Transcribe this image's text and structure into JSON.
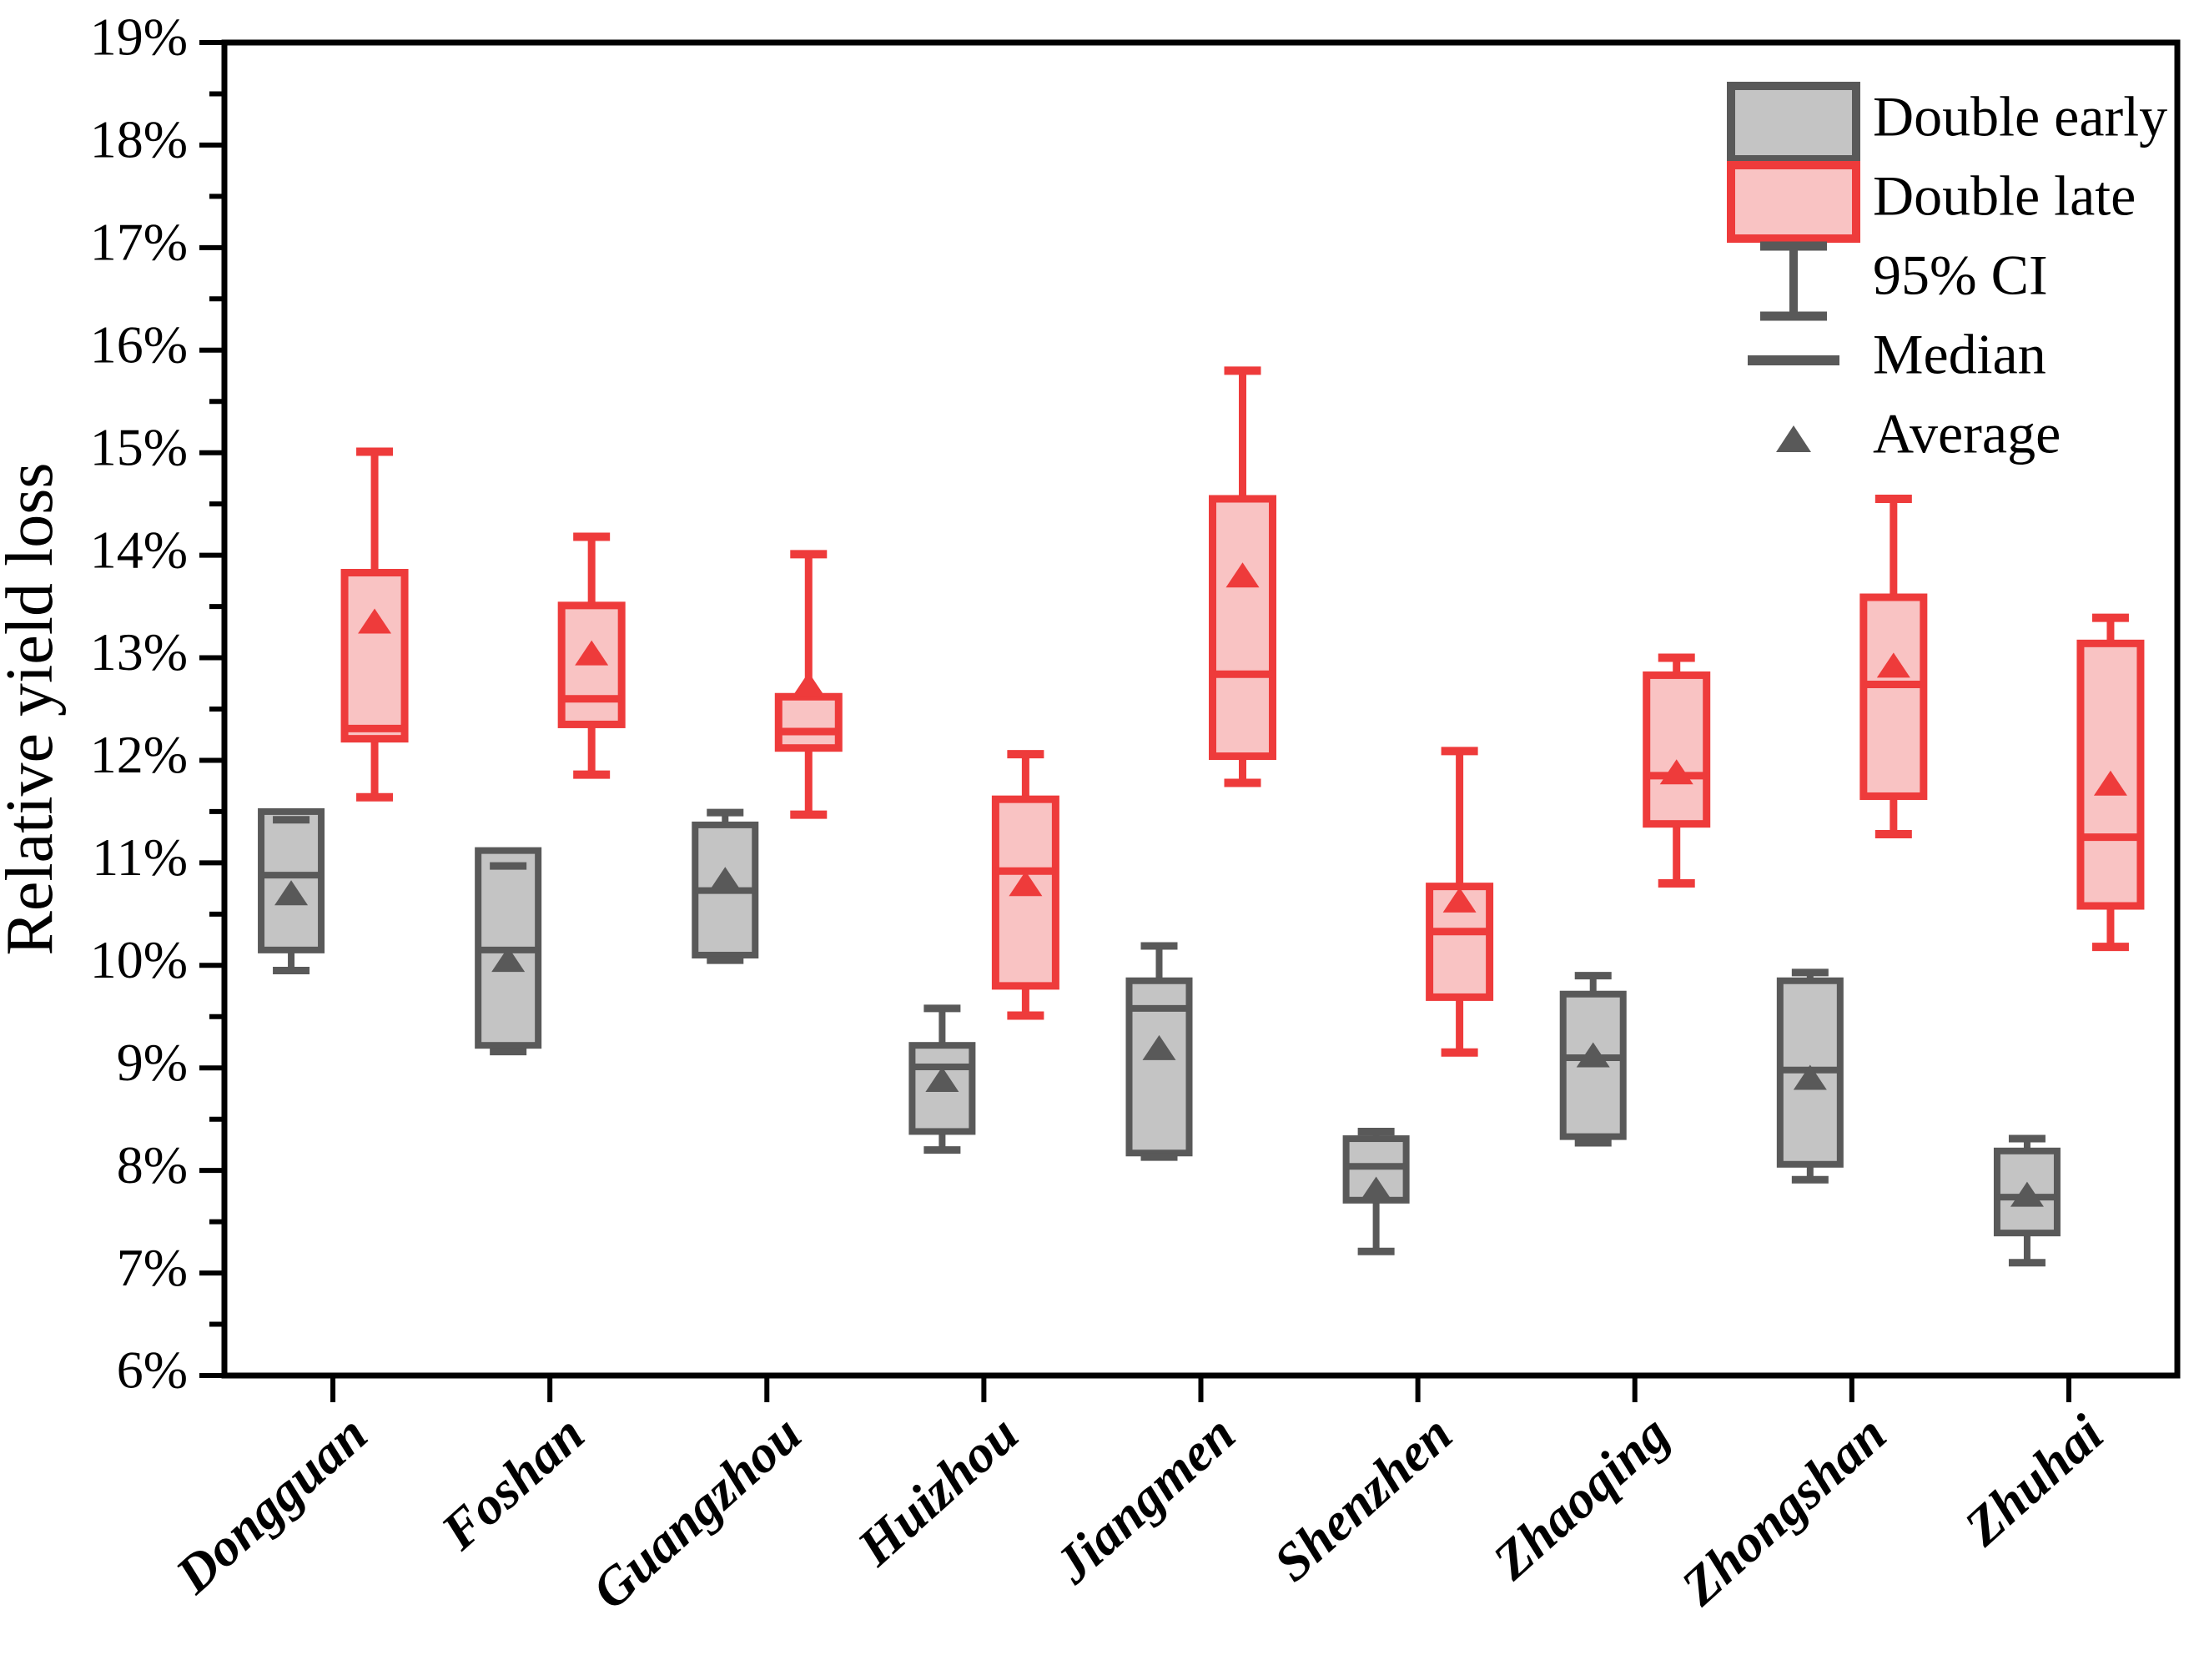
{
  "figure": {
    "background": "#ffffff"
  },
  "colors": {
    "early_stroke": "#595959",
    "early_fill": "#c4c4c4",
    "late_stroke": "#ee3b3b",
    "late_fill": "#f9c3c3",
    "axis": "#000000",
    "tick_text": "#000000"
  },
  "legend": {
    "entries": [
      {
        "icon": "box-early",
        "label": "Double early"
      },
      {
        "icon": "box-late",
        "label": "Double late"
      },
      {
        "icon": "errorbar",
        "label": "95% CI"
      },
      {
        "icon": "median-line",
        "label": "Median"
      },
      {
        "icon": "triangle",
        "label": "Average"
      }
    ]
  },
  "chart_data": {
    "type": "box",
    "title": "",
    "xlabel": "",
    "ylabel": "Relative yield loss",
    "ylim": [
      6,
      19
    ],
    "y_major_step": 1,
    "y_minor_step": 0.5,
    "y_tick_suffix": "%",
    "grid": "off",
    "legend_position": "top-right",
    "whiskers_represent": "95% CI",
    "categories": [
      "Dongguan",
      "Foshan",
      "Guangzhou",
      "Huizhou",
      "Jiangmen",
      "Shenzhen",
      "Zhaoqing",
      "Zhongshan",
      "Zhuhai"
    ],
    "series": [
      {
        "name": "Double early",
        "key": "early",
        "boxes": [
          {
            "category": "Dongguan",
            "ci_low": 9.95,
            "q1": 10.15,
            "median": 10.88,
            "q3": 11.5,
            "ci_high": 11.42,
            "mean": 10.7
          },
          {
            "category": "Foshan",
            "ci_low": 9.16,
            "q1": 9.22,
            "median": 10.15,
            "q3": 11.12,
            "ci_high": 10.97,
            "mean": 10.05
          },
          {
            "category": "Guangzhou",
            "ci_low": 10.05,
            "q1": 10.1,
            "median": 10.73,
            "q3": 11.37,
            "ci_high": 11.49,
            "mean": 10.83
          },
          {
            "category": "Huizhou",
            "ci_low": 8.2,
            "q1": 8.38,
            "median": 9.01,
            "q3": 9.22,
            "ci_high": 9.58,
            "mean": 8.88
          },
          {
            "category": "Jiangmen",
            "ci_low": 8.13,
            "q1": 8.17,
            "median": 9.58,
            "q3": 9.85,
            "ci_high": 10.19,
            "mean": 9.19
          },
          {
            "category": "Shenzhen",
            "ci_low": 7.21,
            "q1": 7.71,
            "median": 8.04,
            "q3": 8.31,
            "ci_high": 8.38,
            "mean": 7.81
          },
          {
            "category": "Zhaoqing",
            "ci_low": 8.27,
            "q1": 8.33,
            "median": 9.1,
            "q3": 9.72,
            "ci_high": 9.9,
            "mean": 9.12
          },
          {
            "category": "Zhongshan",
            "ci_low": 7.91,
            "q1": 8.06,
            "median": 8.98,
            "q3": 9.85,
            "ci_high": 9.93,
            "mean": 8.9
          },
          {
            "category": "Zhuhai",
            "ci_low": 7.1,
            "q1": 7.39,
            "median": 7.74,
            "q3": 8.19,
            "ci_high": 8.31,
            "mean": 7.76
          }
        ]
      },
      {
        "name": "Double late",
        "key": "late",
        "boxes": [
          {
            "category": "Dongguan",
            "ci_low": 11.64,
            "q1": 12.21,
            "median": 12.31,
            "q3": 13.83,
            "ci_high": 15.01,
            "mean": 13.35
          },
          {
            "category": "Foshan",
            "ci_low": 11.86,
            "q1": 12.35,
            "median": 12.6,
            "q3": 13.51,
            "ci_high": 14.18,
            "mean": 13.04
          },
          {
            "category": "Guangzhou",
            "ci_low": 11.47,
            "q1": 12.12,
            "median": 12.28,
            "q3": 12.62,
            "ci_high": 14.01,
            "mean": 12.73
          },
          {
            "category": "Huizhou",
            "ci_low": 9.51,
            "q1": 9.8,
            "median": 10.92,
            "q3": 11.62,
            "ci_high": 12.06,
            "mean": 10.79
          },
          {
            "category": "Jiangmen",
            "ci_low": 11.78,
            "q1": 12.04,
            "median": 12.84,
            "q3": 14.55,
            "ci_high": 15.8,
            "mean": 13.8
          },
          {
            "category": "Shenzhen",
            "ci_low": 9.15,
            "q1": 9.69,
            "median": 10.33,
            "q3": 10.77,
            "ci_high": 12.09,
            "mean": 10.63
          },
          {
            "category": "Zhaoqing",
            "ci_low": 10.8,
            "q1": 11.38,
            "median": 11.85,
            "q3": 12.83,
            "ci_high": 13.0,
            "mean": 11.88
          },
          {
            "category": "Zhongshan",
            "ci_low": 11.28,
            "q1": 11.65,
            "median": 12.74,
            "q3": 13.59,
            "ci_high": 14.55,
            "mean": 12.92
          },
          {
            "category": "Zhuhai",
            "ci_low": 10.18,
            "q1": 10.58,
            "median": 11.25,
            "q3": 13.14,
            "ci_high": 13.39,
            "mean": 11.77
          }
        ]
      }
    ]
  }
}
